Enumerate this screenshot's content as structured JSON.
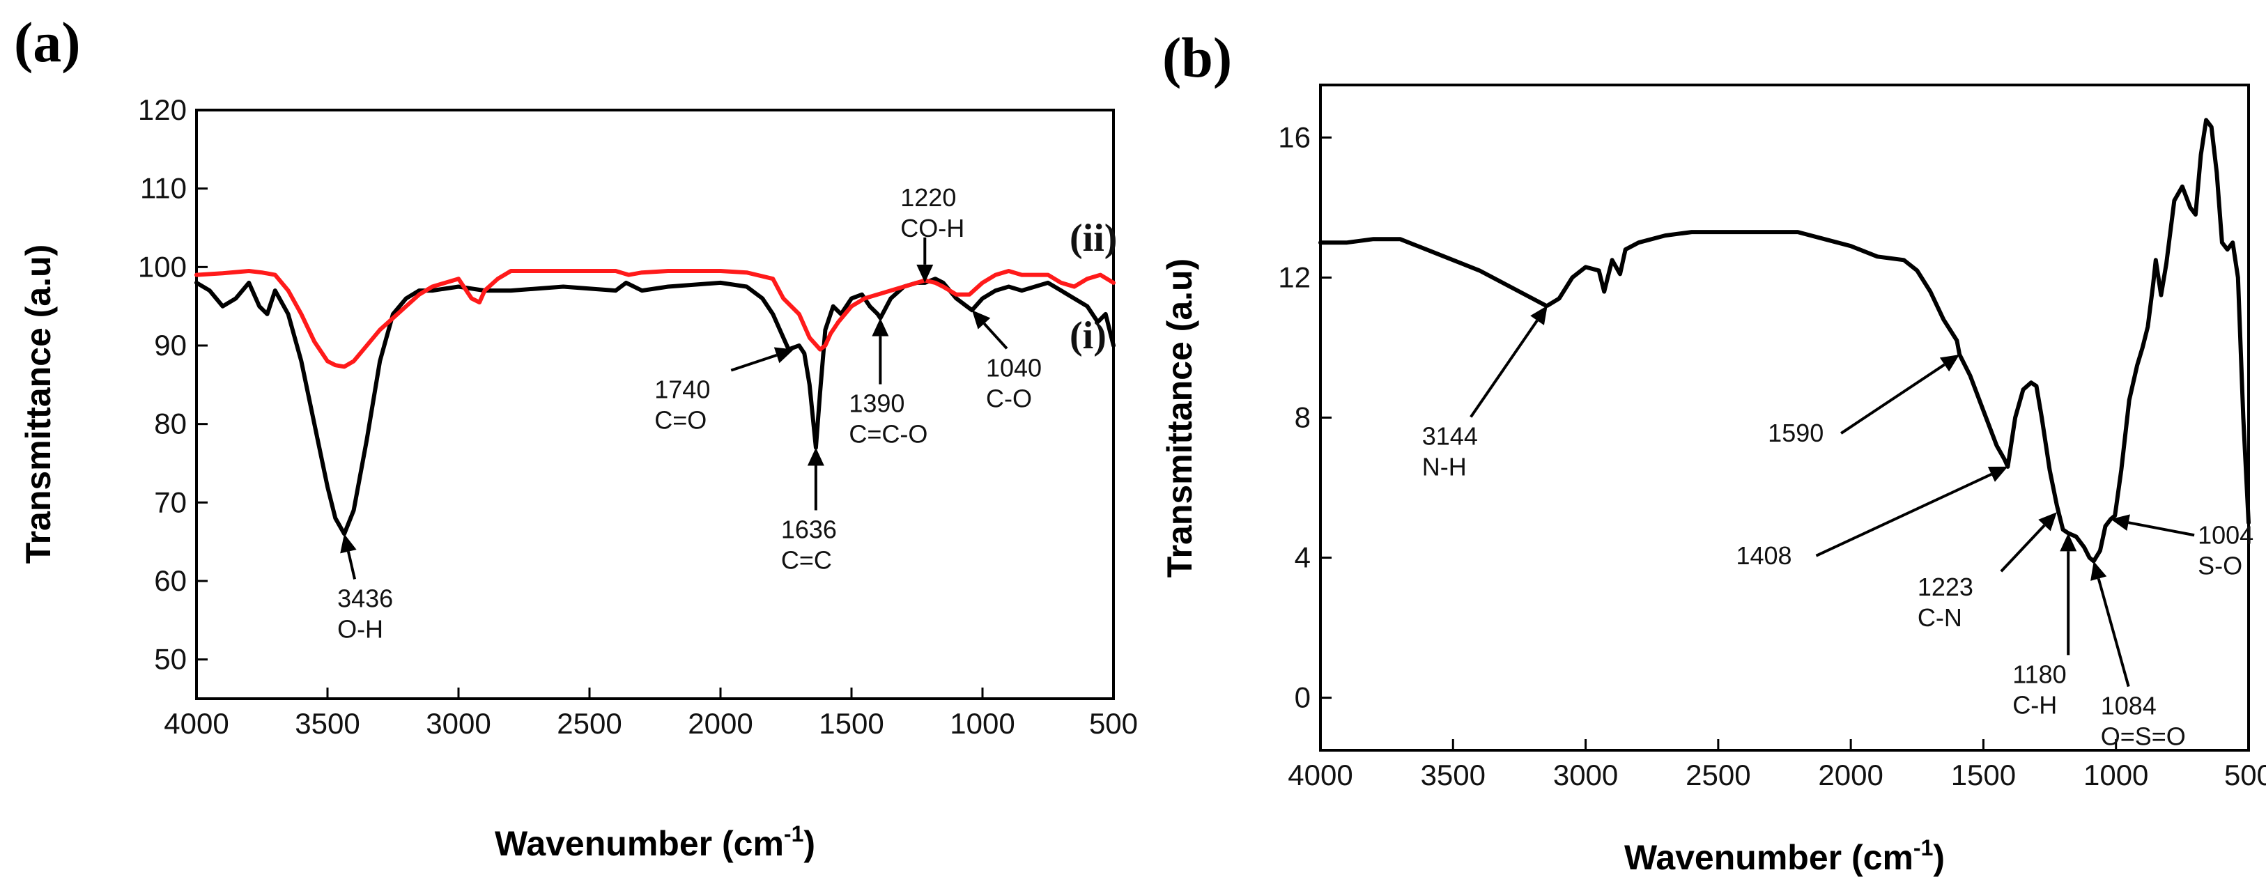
{
  "chart_data": [
    {
      "type": "line",
      "panel_label": "(a)",
      "xlabel": "Wavenumber (cm",
      "xlabel_sup": "-1",
      "xlabel_close": ")",
      "ylabel": "Transmittance (a.u)",
      "xlim": [
        4000,
        500
      ],
      "ylim": [
        45,
        120
      ],
      "x_ticks": [
        4000,
        3500,
        3000,
        2500,
        2000,
        1500,
        1000,
        500
      ],
      "y_ticks": [
        50,
        60,
        70,
        80,
        90,
        100,
        110,
        120
      ],
      "grid": false,
      "series": [
        {
          "name": "(i)",
          "color": "#000000",
          "x": [
            4000,
            3950,
            3900,
            3850,
            3800,
            3760,
            3730,
            3700,
            3650,
            3600,
            3550,
            3500,
            3470,
            3436,
            3400,
            3350,
            3300,
            3250,
            3200,
            3150,
            3100,
            3000,
            2900,
            2800,
            2600,
            2400,
            2360,
            2300,
            2200,
            2000,
            1900,
            1840,
            1800,
            1760,
            1740,
            1700,
            1680,
            1660,
            1636,
            1620,
            1600,
            1570,
            1540,
            1500,
            1460,
            1430,
            1400,
            1390,
            1350,
            1300,
            1250,
            1220,
            1180,
            1150,
            1100,
            1060,
            1040,
            1000,
            950,
            900,
            850,
            800,
            750,
            700,
            650,
            600,
            560,
            530,
            500
          ],
          "y": [
            98,
            97,
            95,
            96,
            98,
            95,
            94,
            97,
            94,
            88,
            80,
            72,
            68,
            66,
            69,
            78,
            88,
            94,
            96,
            97,
            97,
            97.5,
            97,
            97,
            97.5,
            97,
            98,
            97,
            97.5,
            98,
            97.5,
            96,
            94,
            91,
            89.5,
            90,
            89,
            85,
            77,
            84,
            92,
            95,
            94,
            96,
            96.5,
            95,
            94,
            93.5,
            96,
            97.5,
            98,
            98,
            98.5,
            98,
            96,
            95,
            94.5,
            96,
            97,
            97.5,
            97,
            97.5,
            98,
            97,
            96,
            95,
            93,
            94,
            90
          ]
        },
        {
          "name": "(ii)",
          "color": "#ff1a1a",
          "x": [
            4000,
            3900,
            3800,
            3750,
            3700,
            3650,
            3600,
            3550,
            3500,
            3470,
            3436,
            3400,
            3350,
            3300,
            3250,
            3200,
            3150,
            3100,
            3000,
            2950,
            2920,
            2900,
            2850,
            2800,
            2600,
            2400,
            2350,
            2300,
            2200,
            2000,
            1900,
            1800,
            1760,
            1700,
            1660,
            1620,
            1600,
            1580,
            1550,
            1500,
            1450,
            1400,
            1350,
            1300,
            1250,
            1220,
            1180,
            1150,
            1100,
            1050,
            1000,
            950,
            900,
            850,
            800,
            750,
            700,
            650,
            600,
            550,
            500
          ],
          "y": [
            99,
            99.2,
            99.5,
            99.3,
            99,
            97,
            94,
            90.5,
            88,
            87.5,
            87.3,
            88,
            90,
            92,
            93.5,
            95,
            96.5,
            97.5,
            98.5,
            96,
            95.5,
            97,
            98.5,
            99.5,
            99.5,
            99.5,
            99,
            99.3,
            99.5,
            99.5,
            99.3,
            98.5,
            96,
            94,
            91,
            89.5,
            90,
            91.5,
            93,
            95,
            96,
            96.5,
            97,
            97.5,
            98,
            98.3,
            98,
            97.5,
            96.5,
            96.5,
            98,
            99,
            99.5,
            99,
            99,
            99,
            98,
            97.5,
            98.5,
            99,
            98
          ]
        }
      ],
      "series_tags": [
        "(i)",
        "(ii)"
      ],
      "annotations": [
        {
          "value": "3436",
          "label": "O-H",
          "x": 3436,
          "y": 66
        },
        {
          "value": "1740",
          "label": "C=O",
          "x": 1720,
          "y": 89.5
        },
        {
          "value": "1636",
          "label": "C=C",
          "x": 1636,
          "y": 77
        },
        {
          "value": "1390",
          "label": "C=C-O",
          "x": 1390,
          "y": 93.5
        },
        {
          "value": "1220",
          "label": "CO-H",
          "x": 1220,
          "y": 98
        },
        {
          "value": "1040",
          "label": "C-O",
          "x": 1040,
          "y": 94.5
        }
      ]
    },
    {
      "type": "line",
      "panel_label": "(b)",
      "xlabel": "Wavenumber (cm",
      "xlabel_sup": "-1",
      "xlabel_close": ")",
      "ylabel": "Transmittance (a.u)",
      "xlim": [
        4000,
        500
      ],
      "ylim": [
        -1.5,
        17.5
      ],
      "x_ticks": [
        4000,
        3500,
        3000,
        2500,
        2000,
        1500,
        1000,
        500
      ],
      "y_ticks": [
        0,
        4,
        8,
        12,
        16
      ],
      "grid": false,
      "series": [
        {
          "name": "",
          "color": "#000000",
          "x": [
            4000,
            3900,
            3800,
            3700,
            3600,
            3500,
            3400,
            3300,
            3200,
            3150,
            3144,
            3100,
            3050,
            3000,
            2950,
            2930,
            2900,
            2870,
            2850,
            2800,
            2700,
            2600,
            2500,
            2400,
            2300,
            2200,
            2100,
            2000,
            1900,
            1800,
            1750,
            1700,
            1650,
            1600,
            1590,
            1550,
            1500,
            1450,
            1420,
            1408,
            1380,
            1350,
            1320,
            1300,
            1280,
            1250,
            1223,
            1200,
            1180,
            1150,
            1120,
            1100,
            1084,
            1060,
            1040,
            1020,
            1004,
            980,
            950,
            920,
            900,
            880,
            860,
            850,
            830,
            810,
            780,
            750,
            720,
            700,
            680,
            660,
            640,
            620,
            600,
            580,
            560,
            540,
            520,
            500
          ],
          "y": [
            13,
            13,
            13.1,
            13.1,
            12.8,
            12.5,
            12.2,
            11.8,
            11.4,
            11.2,
            11.2,
            11.4,
            12,
            12.3,
            12.2,
            11.6,
            12.5,
            12.1,
            12.8,
            13,
            13.2,
            13.3,
            13.3,
            13.3,
            13.3,
            13.3,
            13.1,
            12.9,
            12.6,
            12.5,
            12.2,
            11.6,
            10.8,
            10.2,
            9.8,
            9.2,
            8.2,
            7.2,
            6.8,
            6.6,
            8,
            8.8,
            9,
            8.9,
            8,
            6.5,
            5.5,
            4.8,
            4.7,
            4.6,
            4.3,
            4,
            3.9,
            4.2,
            4.9,
            5.1,
            5.2,
            6.5,
            8.5,
            9.5,
            10,
            10.6,
            11.8,
            12.5,
            11.5,
            12.4,
            14.2,
            14.6,
            14,
            13.8,
            15.5,
            16.5,
            16.3,
            15,
            13,
            12.8,
            13,
            12,
            8,
            5
          ]
        }
      ],
      "annotations": [
        {
          "value": "3144",
          "label": "N-H",
          "x": 3144,
          "y": 11.2
        },
        {
          "value": "1590",
          "label": "",
          "x": 1590,
          "y": 9.8
        },
        {
          "value": "1408",
          "label": "",
          "x": 1408,
          "y": 6.6
        },
        {
          "value": "1223",
          "label": "C-N",
          "x": 1223,
          "y": 5.3
        },
        {
          "value": "1180",
          "label": "C-H",
          "x": 1180,
          "y": 4.7
        },
        {
          "value": "1084",
          "label": "O=S=O",
          "x": 1084,
          "y": 3.9
        },
        {
          "value": "1004",
          "label": "S-O",
          "x": 1020,
          "y": 5.1
        }
      ]
    }
  ]
}
